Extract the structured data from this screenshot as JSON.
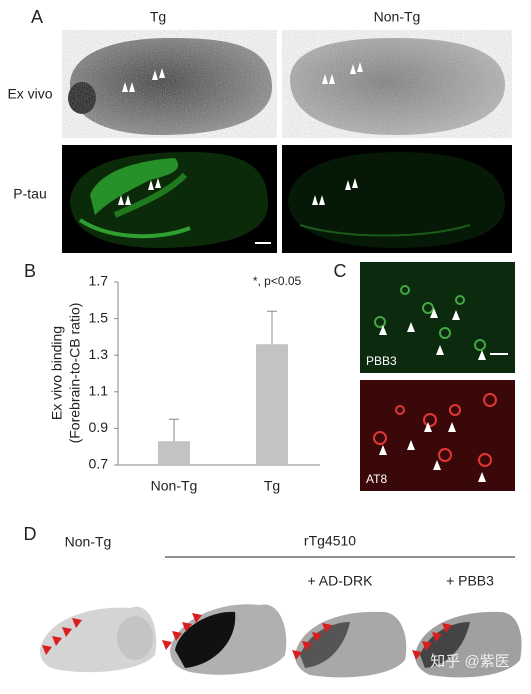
{
  "panel_a": {
    "label": "A",
    "columns": [
      "Tg",
      "Non-Tg"
    ],
    "rows": [
      "Ex vivo",
      "P-tau"
    ]
  },
  "chart_data": {
    "type": "bar",
    "label": "B",
    "ylabel_lines": [
      "Ex vivo binding",
      "(Forebrain-to-CB ratio)"
    ],
    "annotation": "*, p<0.05",
    "categories": [
      "Non-Tg",
      "Tg"
    ],
    "values": [
      0.83,
      1.36
    ],
    "errors": [
      0.12,
      0.18
    ],
    "color": "#c3c3c3",
    "ylim": [
      0.7,
      1.7
    ],
    "yticks": [
      0.7,
      0.9,
      1.1,
      1.3,
      1.5,
      1.7
    ]
  },
  "panel_c": {
    "label": "C",
    "images": [
      "PBB3",
      "AT8"
    ]
  },
  "panel_d": {
    "label": "D",
    "groups": [
      "Non-Tg",
      "rTg4510"
    ],
    "treatments": [
      "+ AD-DRK",
      "+ PBB3"
    ]
  },
  "watermark": "知乎 @紫医"
}
